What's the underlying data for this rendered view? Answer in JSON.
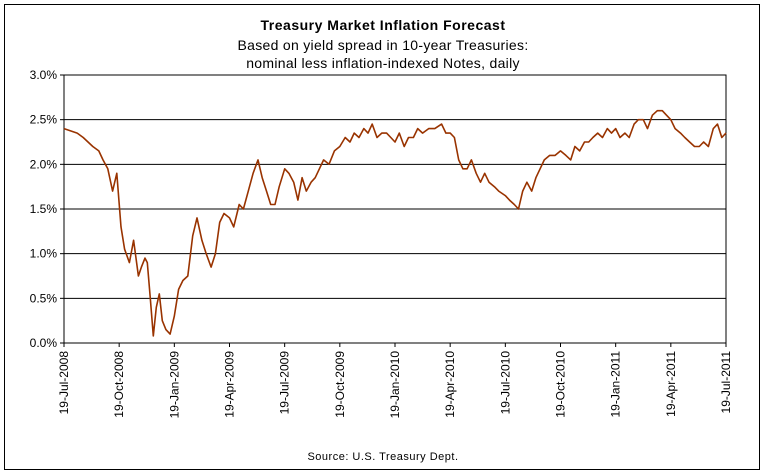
{
  "chart_data": {
    "type": "line",
    "title": "Treasury Market Inflation Forecast",
    "subtitle_line1": "Based on yield spread in 10-year Treasuries:",
    "subtitle_line2": "nominal less inflation-indexed Notes, daily",
    "source": "Source: U.S. Treasury Dept.",
    "xlabel": "",
    "ylabel": "",
    "ylim": [
      0,
      3.0
    ],
    "y_ticks": [
      "0.0%",
      "0.5%",
      "1.0%",
      "1.5%",
      "2.0%",
      "2.5%",
      "3.0%"
    ],
    "x_ticks": [
      "19-Jul-2008",
      "19-Oct-2008",
      "19-Jan-2009",
      "19-Apr-2009",
      "19-Jul-2009",
      "19-Oct-2009",
      "19-Jan-2010",
      "19-Apr-2010",
      "19-Jul-2010",
      "19-Oct-2010",
      "19-Jan-2011",
      "19-Apr-2011",
      "19-Jul-2011"
    ],
    "grid": "horizontal",
    "line_color": "#993300",
    "series": [
      {
        "x": [
          "2008-07-19",
          "2008-08-10",
          "2008-08-20",
          "2008-09-05",
          "2008-09-15",
          "2008-09-22",
          "2008-09-30",
          "2008-10-08",
          "2008-10-15",
          "2008-10-22",
          "2008-10-28",
          "2008-11-05",
          "2008-11-12",
          "2008-11-20",
          "2008-11-25",
          "2008-12-01",
          "2008-12-05",
          "2008-12-10",
          "2008-12-15",
          "2008-12-20",
          "2008-12-25",
          "2008-12-30",
          "2009-01-05",
          "2009-01-12",
          "2009-01-19",
          "2009-01-26",
          "2009-02-02",
          "2009-02-10",
          "2009-02-18",
          "2009-02-25",
          "2009-03-05",
          "2009-03-12",
          "2009-03-20",
          "2009-03-27",
          "2009-04-03",
          "2009-04-10",
          "2009-04-19",
          "2009-04-26",
          "2009-05-05",
          "2009-05-12",
          "2009-05-20",
          "2009-05-28",
          "2009-06-05",
          "2009-06-12",
          "2009-06-19",
          "2009-06-26",
          "2009-07-03",
          "2009-07-10",
          "2009-07-19",
          "2009-07-26",
          "2009-08-03",
          "2009-08-10",
          "2009-08-17",
          "2009-08-24",
          "2009-09-01",
          "2009-09-08",
          "2009-09-15",
          "2009-09-22",
          "2009-10-01",
          "2009-10-10",
          "2009-10-19",
          "2009-10-28",
          "2009-11-05",
          "2009-11-12",
          "2009-11-20",
          "2009-11-28",
          "2009-12-05",
          "2009-12-12",
          "2009-12-20",
          "2009-12-28",
          "2010-01-05",
          "2010-01-12",
          "2010-01-19",
          "2010-01-26",
          "2010-02-03",
          "2010-02-10",
          "2010-02-18",
          "2010-02-25",
          "2010-03-05",
          "2010-03-15",
          "2010-03-25",
          "2010-04-05",
          "2010-04-12",
          "2010-04-19",
          "2010-04-26",
          "2010-05-03",
          "2010-05-10",
          "2010-05-17",
          "2010-05-24",
          "2010-06-01",
          "2010-06-08",
          "2010-06-15",
          "2010-06-22",
          "2010-07-01",
          "2010-07-08",
          "2010-07-19",
          "2010-07-26",
          "2010-08-03",
          "2010-08-10",
          "2010-08-17",
          "2010-08-24",
          "2010-09-01",
          "2010-09-08",
          "2010-09-15",
          "2010-09-22",
          "2010-10-01",
          "2010-10-10",
          "2010-10-19",
          "2010-10-28",
          "2010-11-05",
          "2010-11-12",
          "2010-11-20",
          "2010-11-28",
          "2010-12-05",
          "2010-12-12",
          "2010-12-20",
          "2010-12-28",
          "2011-01-05",
          "2011-01-12",
          "2011-01-19",
          "2011-01-26",
          "2011-02-03",
          "2011-02-10",
          "2011-02-18",
          "2011-02-25",
          "2011-03-05",
          "2011-03-12",
          "2011-03-20",
          "2011-03-28",
          "2011-04-05",
          "2011-04-12",
          "2011-04-19",
          "2011-04-26",
          "2011-05-05",
          "2011-05-12",
          "2011-05-20",
          "2011-05-28",
          "2011-06-05",
          "2011-06-12",
          "2011-06-20",
          "2011-06-28",
          "2011-07-05",
          "2011-07-12",
          "2011-07-19"
        ],
        "y": [
          2.4,
          2.35,
          2.3,
          2.2,
          2.15,
          2.05,
          1.95,
          1.7,
          1.9,
          1.3,
          1.05,
          0.9,
          1.15,
          0.75,
          0.85,
          0.95,
          0.9,
          0.5,
          0.08,
          0.4,
          0.55,
          0.25,
          0.15,
          0.1,
          0.3,
          0.6,
          0.7,
          0.75,
          1.2,
          1.4,
          1.15,
          1.0,
          0.85,
          1.0,
          1.35,
          1.45,
          1.4,
          1.3,
          1.55,
          1.5,
          1.7,
          1.9,
          2.05,
          1.85,
          1.7,
          1.55,
          1.55,
          1.75,
          1.95,
          1.9,
          1.8,
          1.6,
          1.85,
          1.7,
          1.8,
          1.85,
          1.95,
          2.05,
          2.0,
          2.15,
          2.2,
          2.3,
          2.25,
          2.35,
          2.3,
          2.4,
          2.35,
          2.45,
          2.3,
          2.35,
          2.35,
          2.3,
          2.25,
          2.35,
          2.2,
          2.3,
          2.3,
          2.4,
          2.35,
          2.4,
          2.4,
          2.45,
          2.35,
          2.35,
          2.3,
          2.05,
          1.95,
          1.95,
          2.05,
          1.9,
          1.8,
          1.9,
          1.8,
          1.75,
          1.7,
          1.65,
          1.6,
          1.55,
          1.5,
          1.7,
          1.8,
          1.7,
          1.85,
          1.95,
          2.05,
          2.1,
          2.1,
          2.15,
          2.1,
          2.05,
          2.2,
          2.15,
          2.25,
          2.25,
          2.3,
          2.35,
          2.3,
          2.4,
          2.35,
          2.4,
          2.3,
          2.35,
          2.3,
          2.45,
          2.5,
          2.5,
          2.4,
          2.55,
          2.6,
          2.6,
          2.55,
          2.5,
          2.4,
          2.35,
          2.3,
          2.25,
          2.2,
          2.2,
          2.25,
          2.2,
          2.4,
          2.45,
          2.3,
          2.35
        ]
      }
    ]
  }
}
